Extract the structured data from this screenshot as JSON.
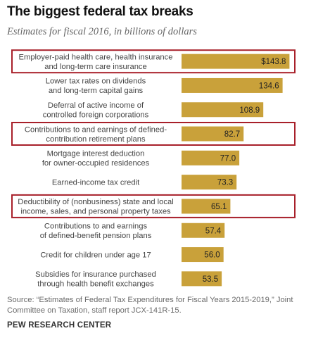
{
  "chart_data": {
    "type": "bar",
    "orientation": "horizontal",
    "title": "The biggest federal tax breaks",
    "subtitle": "Estimates for fiscal 2016, in billions of dollars",
    "categories": [
      [
        "Employer-paid health care, health insurance",
        "and long-term care insurance"
      ],
      [
        "Lower tax rates on dividends",
        "and long-term capital gains"
      ],
      [
        "Deferral of active income of",
        "controlled foreign corporations"
      ],
      [
        "Contributions to and earnings of defined-",
        "contribution retirement plans"
      ],
      [
        "Mortgage interest deduction",
        "for owner-occupied residences"
      ],
      [
        "Earned-income tax credit"
      ],
      [
        "Deductibility of (nonbusiness) state and local",
        "income, sales, and personal property taxes"
      ],
      [
        "Contributions to and earnings",
        "of defined-benefit pension plans"
      ],
      [
        "Credit for children under age 17"
      ],
      [
        "Subsidies for insurance purchased",
        "through health benefit exchanges"
      ]
    ],
    "values": [
      143.8,
      134.6,
      108.9,
      82.7,
      77.0,
      73.3,
      65.1,
      57.4,
      56.0,
      53.5
    ],
    "value_labels": [
      "$143.8",
      "134.6",
      "108.9",
      "82.7",
      "77.0",
      "73.3",
      "65.1",
      "57.4",
      "56.0",
      "53.5"
    ],
    "highlighted": [
      0,
      3,
      6
    ],
    "xlim": [
      0,
      150
    ],
    "colors": {
      "bar": "#c9a13a",
      "highlight_border": "#a8202a",
      "row_bg": "#f2f2f2"
    }
  },
  "source": "Source: “Estimates of Federal Tax Expenditures for Fiscal Years 2015-2019,” Joint Committee on Taxation, staff report JCX-141R-15.",
  "footer": "PEW RESEARCH CENTER"
}
